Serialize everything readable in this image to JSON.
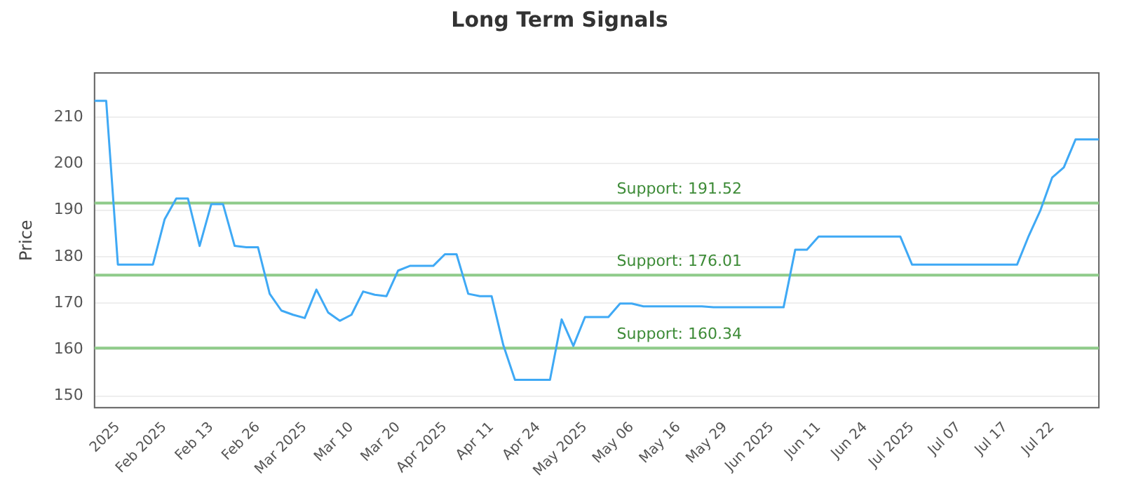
{
  "chart_data": {
    "type": "line",
    "title": "Long Term Signals",
    "ylabel": "Price",
    "categories": [
      null,
      null,
      "2025",
      null,
      null,
      null,
      "Feb 2025",
      null,
      null,
      null,
      "Feb 13",
      null,
      null,
      null,
      "Feb 26",
      null,
      null,
      null,
      "Mar 2025",
      null,
      null,
      null,
      "Mar 10",
      null,
      null,
      null,
      "Mar 20",
      null,
      null,
      null,
      "Apr 2025",
      null,
      null,
      null,
      "Apr 11",
      null,
      null,
      null,
      "Apr 24",
      null,
      null,
      null,
      "May 2025",
      null,
      null,
      null,
      "May 06",
      null,
      null,
      null,
      "May 16",
      null,
      null,
      null,
      "May 29",
      null,
      null,
      null,
      "Jun 2025",
      null,
      null,
      null,
      "Jun 11",
      null,
      null,
      null,
      "Jun 24",
      null,
      null,
      null,
      "Jul 2025",
      null,
      null,
      null,
      "Jul 07",
      null,
      null,
      null,
      "Jul 17",
      null,
      null,
      null,
      "Jul 22",
      null,
      null,
      null,
      null
    ],
    "series": [
      {
        "color": "#3fa9f5",
        "values": [
          213.5,
          213.5,
          178.3,
          178.3,
          178.3,
          178.3,
          188,
          192.5,
          192.5,
          182.3,
          191.3,
          191.3,
          182.3,
          182,
          182,
          172,
          168.4,
          167.5,
          166.8,
          172.9,
          168,
          166.2,
          167.5,
          172.5,
          171.8,
          171.5,
          177,
          178,
          178,
          178,
          180.5,
          180.5,
          172,
          171.5,
          171.5,
          161,
          153.5,
          153.5,
          153.5,
          153.5,
          166.5,
          160.8,
          167,
          167,
          167,
          169.9,
          169.9,
          169.3,
          169.3,
          169.3,
          169.3,
          169.3,
          169.3,
          169.1,
          169.1,
          169.1,
          169.1,
          169.1,
          169.1,
          169.1,
          181.5,
          181.5,
          184.3,
          184.3,
          184.3,
          184.3,
          184.3,
          184.3,
          184.3,
          184.3,
          178.3,
          178.3,
          178.3,
          178.3,
          178.3,
          178.3,
          178.3,
          178.3,
          178.3,
          178.3,
          184.5,
          190,
          197,
          199.2,
          205.2,
          205.2,
          205.2
        ]
      }
    ],
    "ylim": [
      147.5,
      219.5
    ],
    "yticks": [
      150,
      160,
      170,
      180,
      190,
      200,
      210
    ],
    "grid": "y",
    "marker": "none",
    "line_style": "solid",
    "legend": false,
    "ref_lines": [
      {
        "axis": "y",
        "value": 191.52,
        "label": "Support: 191.52",
        "color": "#8fcb8a"
      },
      {
        "axis": "y",
        "value": 176.01,
        "label": "Support: 176.01",
        "color": "#8fcb8a"
      },
      {
        "axis": "y",
        "value": 160.34,
        "label": "Support: 160.34",
        "color": "#8fcb8a"
      }
    ]
  }
}
